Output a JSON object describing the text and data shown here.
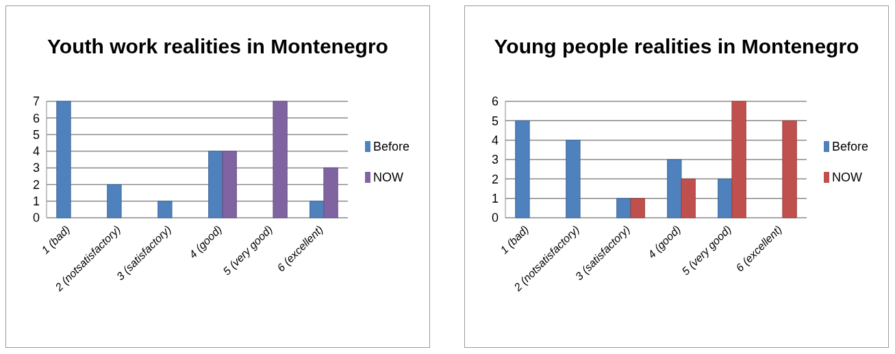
{
  "chart_data": [
    {
      "type": "bar",
      "title": "Youth work realities in Montenegro",
      "categories": [
        "1 (bad)",
        "2 (notsatisfactory)",
        "3 (satisfactory)",
        "4 (good)",
        "5 (very good)",
        "6 (excellent)"
      ],
      "series": [
        {
          "name": "Before",
          "color": "#4f81bd",
          "values": [
            7,
            2,
            1,
            4,
            null,
            1
          ]
        },
        {
          "name": "NOW",
          "color": "#8064a2",
          "values": [
            null,
            null,
            null,
            4,
            7,
            3
          ]
        }
      ],
      "ylim": [
        0,
        7
      ],
      "yticks": [
        0,
        1,
        2,
        3,
        4,
        5,
        6,
        7
      ],
      "grid": "y",
      "legend": "right"
    },
    {
      "type": "bar",
      "title": "Young people realities in Montenegro",
      "categories": [
        "1 (bad)",
        "2 (notsatisfactory)",
        "3 (satisfactory)",
        "4 (good)",
        "5 (very good)",
        "6 (excellent)"
      ],
      "series": [
        {
          "name": "Before",
          "color": "#4f81bd",
          "values": [
            5,
            4,
            1,
            3,
            2,
            null
          ]
        },
        {
          "name": "NOW",
          "color": "#c0504d",
          "values": [
            null,
            null,
            1,
            2,
            6,
            5
          ]
        }
      ],
      "ylim": [
        0,
        6
      ],
      "yticks": [
        0,
        1,
        2,
        3,
        4,
        5,
        6
      ],
      "grid": "y",
      "legend": "right"
    }
  ]
}
